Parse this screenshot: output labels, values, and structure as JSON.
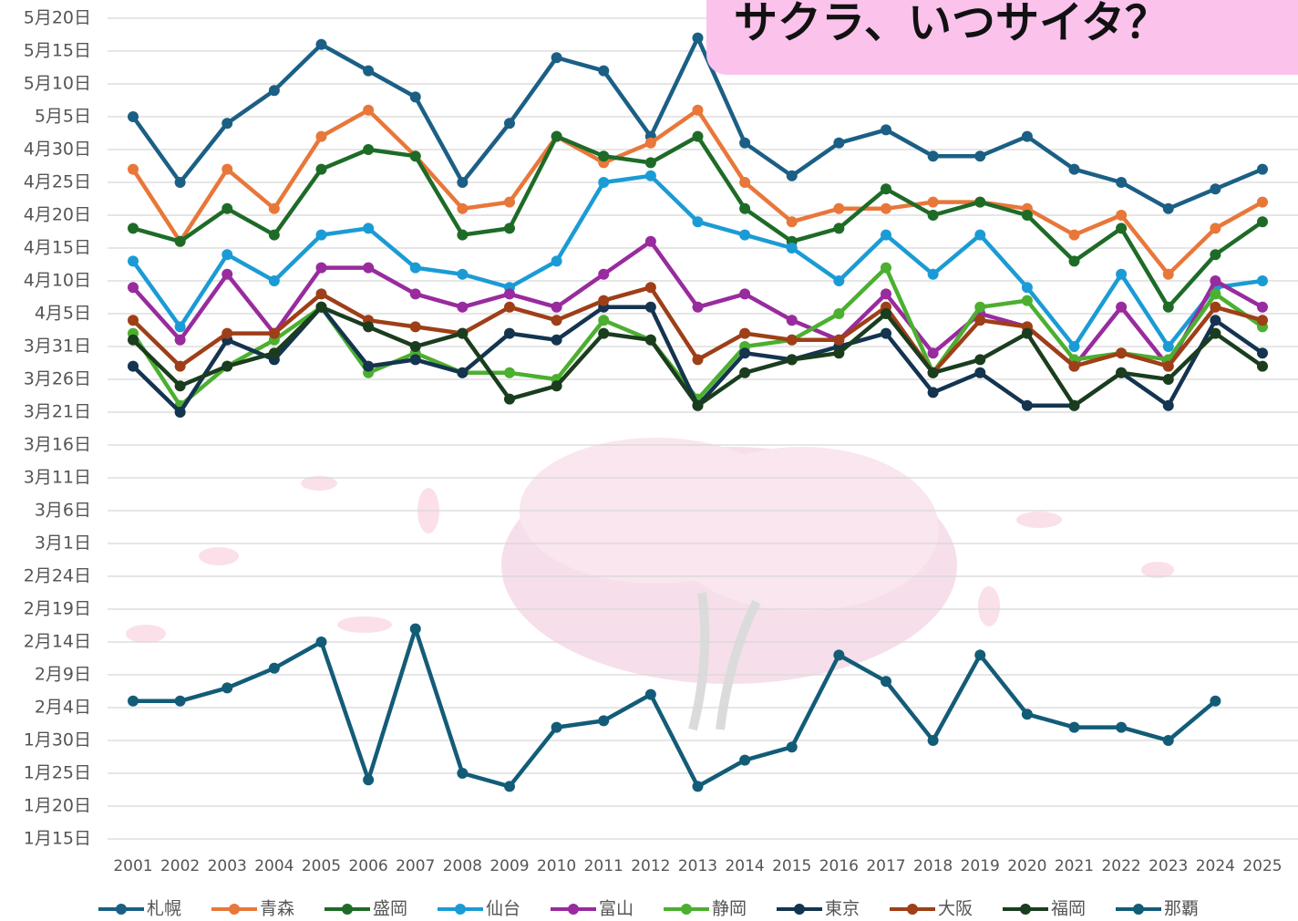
{
  "chart_data": {
    "type": "line",
    "title": "サクラ、いつサイタ？",
    "categories": [
      "2001",
      "2002",
      "2003",
      "2004",
      "2005",
      "2006",
      "2007",
      "2008",
      "2009",
      "2010",
      "2011",
      "2012",
      "2013",
      "2014",
      "2015",
      "2016",
      "2017",
      "2018",
      "2019",
      "2020",
      "2021",
      "2022",
      "2023",
      "2024",
      "2025"
    ],
    "ylim": [
      15,
      140
    ],
    "yticks": [
      {
        "value": 15,
        "label": "1月15日"
      },
      {
        "value": 20,
        "label": "1月20日"
      },
      {
        "value": 25,
        "label": "1月25日"
      },
      {
        "value": 30,
        "label": "1月30日"
      },
      {
        "value": 35,
        "label": "2月4日"
      },
      {
        "value": 40,
        "label": "2月9日"
      },
      {
        "value": 45,
        "label": "2月14日"
      },
      {
        "value": 50,
        "label": "2月19日"
      },
      {
        "value": 55,
        "label": "2月24日"
      },
      {
        "value": 60,
        "label": "3月1日"
      },
      {
        "value": 65,
        "label": "3月6日"
      },
      {
        "value": 70,
        "label": "3月11日"
      },
      {
        "value": 75,
        "label": "3月16日"
      },
      {
        "value": 80,
        "label": "3月21日"
      },
      {
        "value": 85,
        "label": "3月26日"
      },
      {
        "value": 90,
        "label": "3月31日"
      },
      {
        "value": 95,
        "label": "4月5日"
      },
      {
        "value": 100,
        "label": "4月10日"
      },
      {
        "value": 105,
        "label": "4月15日"
      },
      {
        "value": 110,
        "label": "4月20日"
      },
      {
        "value": 115,
        "label": "4月25日"
      },
      {
        "value": 120,
        "label": "4月30日"
      },
      {
        "value": 125,
        "label": "5月5日"
      },
      {
        "value": 130,
        "label": "5月10日"
      },
      {
        "value": 135,
        "label": "5月15日"
      },
      {
        "value": 140,
        "label": "5月20日"
      }
    ],
    "grid": true,
    "series": [
      {
        "name": "札幌",
        "color": "#1b5f85",
        "values": [
          125,
          115,
          124,
          129,
          136,
          132,
          128,
          115,
          124,
          134,
          132,
          122,
          137,
          121,
          116,
          121,
          123,
          119,
          119,
          122,
          117,
          115,
          111,
          114,
          117
        ]
      },
      {
        "name": "青森",
        "color": "#e8773a",
        "values": [
          117,
          106,
          117,
          111,
          122,
          126,
          119,
          111,
          112,
          122,
          118,
          121,
          126,
          115,
          109,
          111,
          111,
          112,
          112,
          111,
          107,
          110,
          101,
          108,
          112
        ]
      },
      {
        "name": "盛岡",
        "color": "#1e6b28",
        "values": [
          108,
          106,
          111,
          107,
          117,
          120,
          119,
          107,
          108,
          122,
          119,
          118,
          122,
          111,
          106,
          108,
          114,
          110,
          112,
          110,
          103,
          108,
          96,
          104,
          109
        ]
      },
      {
        "name": "仙台",
        "color": "#1b9bd5",
        "values": [
          103,
          93,
          104,
          100,
          107,
          108,
          102,
          101,
          99,
          103,
          115,
          116,
          109,
          107,
          105,
          100,
          107,
          101,
          107,
          99,
          90,
          101,
          90,
          99,
          100
        ]
      },
      {
        "name": "富山",
        "color": "#982b9e",
        "values": [
          99,
          91,
          101,
          92,
          102,
          102,
          98,
          96,
          98,
          96,
          101,
          106,
          96,
          98,
          94,
          91,
          98,
          89,
          95,
          93,
          87,
          96,
          87,
          100,
          96
        ]
      },
      {
        "name": "静岡",
        "color": "#4caf30",
        "values": [
          92,
          81,
          87,
          91,
          96,
          86,
          89,
          86,
          86,
          85,
          94,
          91,
          82,
          90,
          91,
          95,
          102,
          86,
          96,
          97,
          88,
          89,
          88,
          98,
          93
        ]
      },
      {
        "name": "東京",
        "color": "#14344f",
        "values": [
          87,
          80,
          91,
          88,
          96,
          87,
          88,
          86,
          92,
          91,
          96,
          96,
          81,
          89,
          88,
          90,
          92,
          83,
          86,
          81,
          81,
          86,
          81,
          94,
          89
        ]
      },
      {
        "name": "大阪",
        "color": "#9e3f18",
        "values": [
          94,
          87,
          92,
          92,
          98,
          94,
          93,
          92,
          96,
          94,
          97,
          99,
          88,
          92,
          91,
          91,
          96,
          86,
          94,
          93,
          87,
          89,
          87,
          96,
          94
        ]
      },
      {
        "name": "福岡",
        "color": "#1a3d1e",
        "values": [
          91,
          84,
          87,
          89,
          96,
          93,
          90,
          92,
          82,
          84,
          92,
          91,
          81,
          86,
          88,
          89,
          95,
          86,
          88,
          92,
          81,
          86,
          85,
          92,
          87
        ]
      },
      {
        "name": "那覇",
        "color": "#135c78",
        "values": [
          36,
          36,
          38,
          41,
          45,
          24,
          47,
          25,
          23,
          32,
          33,
          37,
          23,
          27,
          29,
          43,
          39,
          30,
          43,
          34,
          32,
          32,
          30,
          36,
          null
        ]
      }
    ]
  }
}
